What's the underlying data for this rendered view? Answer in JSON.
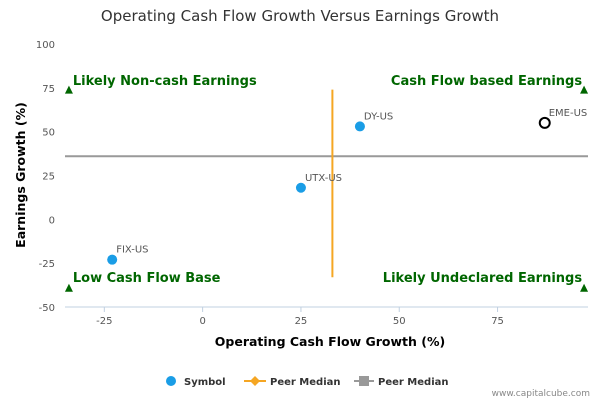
{
  "chart_data": {
    "type": "scatter",
    "title": "Operating Cash Flow Growth Versus Earnings Growth",
    "xlabel": "Operating Cash Flow Growth (%)",
    "ylabel": "Earnings Growth (%)",
    "xlim": [
      -35,
      98
    ],
    "ylim": [
      -50,
      100
    ],
    "xticks": [
      -25,
      0,
      25,
      50,
      75
    ],
    "yticks": [
      -50,
      -25,
      0,
      25,
      50,
      75,
      100
    ],
    "points": [
      {
        "label": "FIX-US",
        "x": -23,
        "y": -23,
        "style": "filled"
      },
      {
        "label": "UTX-US",
        "x": 25,
        "y": 18,
        "style": "filled"
      },
      {
        "label": "DY-US",
        "x": 40,
        "y": 53,
        "style": "filled"
      },
      {
        "label": "EME-US",
        "x": 87,
        "y": 55,
        "style": "hollow"
      }
    ],
    "peer_median_x": 33,
    "peer_median_y": 36,
    "median_x_range": [
      -33,
      74
    ],
    "median_y_range": [
      -35,
      98
    ],
    "quadrants": {
      "top_left": "Likely Non-cash Earnings",
      "top_right": "Cash Flow based Earnings",
      "bottom_left": "Low Cash Flow Base",
      "bottom_right": "Likely Undeclared Earnings"
    },
    "legend": {
      "placement": "bottom-center",
      "items": [
        {
          "label": "Symbol",
          "marker": "circle",
          "color": "#1a9de6"
        },
        {
          "label": "Peer Median",
          "marker": "line-diamond",
          "color": "#f5a623"
        },
        {
          "label": "Peer Median",
          "marker": "line-square",
          "color": "#999999"
        }
      ]
    },
    "colors": {
      "point": "#1a9de6",
      "hollow_stroke": "#000000",
      "median_x": "#f5a623",
      "median_y": "#999999",
      "quadrant_text": "#006600",
      "triangle": "#006600"
    },
    "grid": false
  },
  "footer": {
    "credit": "www.capitalcube.com"
  }
}
